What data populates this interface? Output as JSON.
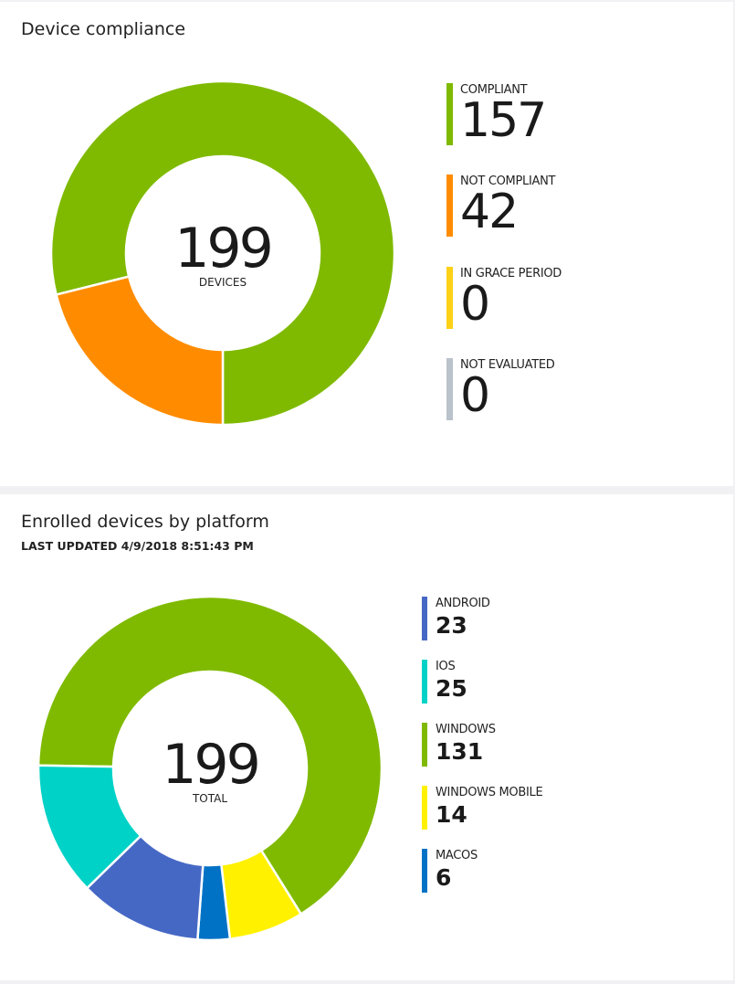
{
  "compliance": {
    "title": "Device compliance",
    "center_value": "199",
    "center_label": "DEVICES",
    "legend": [
      {
        "label": "COMPLIANT",
        "value": "157",
        "color": "#7fba00"
      },
      {
        "label": "NOT COMPLIANT",
        "value": "42",
        "color": "#ff8c00"
      },
      {
        "label": "IN GRACE PERIOD",
        "value": "0",
        "color": "#fcd116"
      },
      {
        "label": "NOT EVALUATED",
        "value": "0",
        "color": "#bac2cb"
      }
    ]
  },
  "platform": {
    "title": "Enrolled devices by platform",
    "last_updated": "LAST UPDATED 4/9/2018 8:51:43 PM",
    "center_value": "199",
    "center_label": "TOTAL",
    "legend": [
      {
        "label": "ANDROID",
        "value": "23",
        "color": "#4668c5"
      },
      {
        "label": "IOS",
        "value": "25",
        "color": "#00d2c7"
      },
      {
        "label": "WINDOWS",
        "value": "131",
        "color": "#7fba00"
      },
      {
        "label": "WINDOWS MOBILE",
        "value": "14",
        "color": "#fff100"
      },
      {
        "label": "MACOS",
        "value": "6",
        "color": "#0072c6"
      }
    ]
  },
  "chart_data": [
    {
      "type": "pie",
      "title": "Device compliance",
      "categories": [
        "COMPLIANT",
        "NOT COMPLIANT",
        "IN GRACE PERIOD",
        "NOT EVALUATED"
      ],
      "values": [
        157,
        42,
        0,
        0
      ],
      "colors": [
        "#7fba00",
        "#ff8c00",
        "#fcd116",
        "#bac2cb"
      ],
      "donut": true,
      "legend": "right"
    },
    {
      "type": "pie",
      "title": "Enrolled devices by platform",
      "categories": [
        "WINDOWS",
        "WINDOWS MOBILE",
        "MACOS",
        "ANDROID",
        "IOS"
      ],
      "values": [
        131,
        14,
        6,
        23,
        25
      ],
      "colors": [
        "#7fba00",
        "#fff100",
        "#0072c6",
        "#4668c5",
        "#00d2c7"
      ],
      "donut": true,
      "legend": "right"
    }
  ]
}
